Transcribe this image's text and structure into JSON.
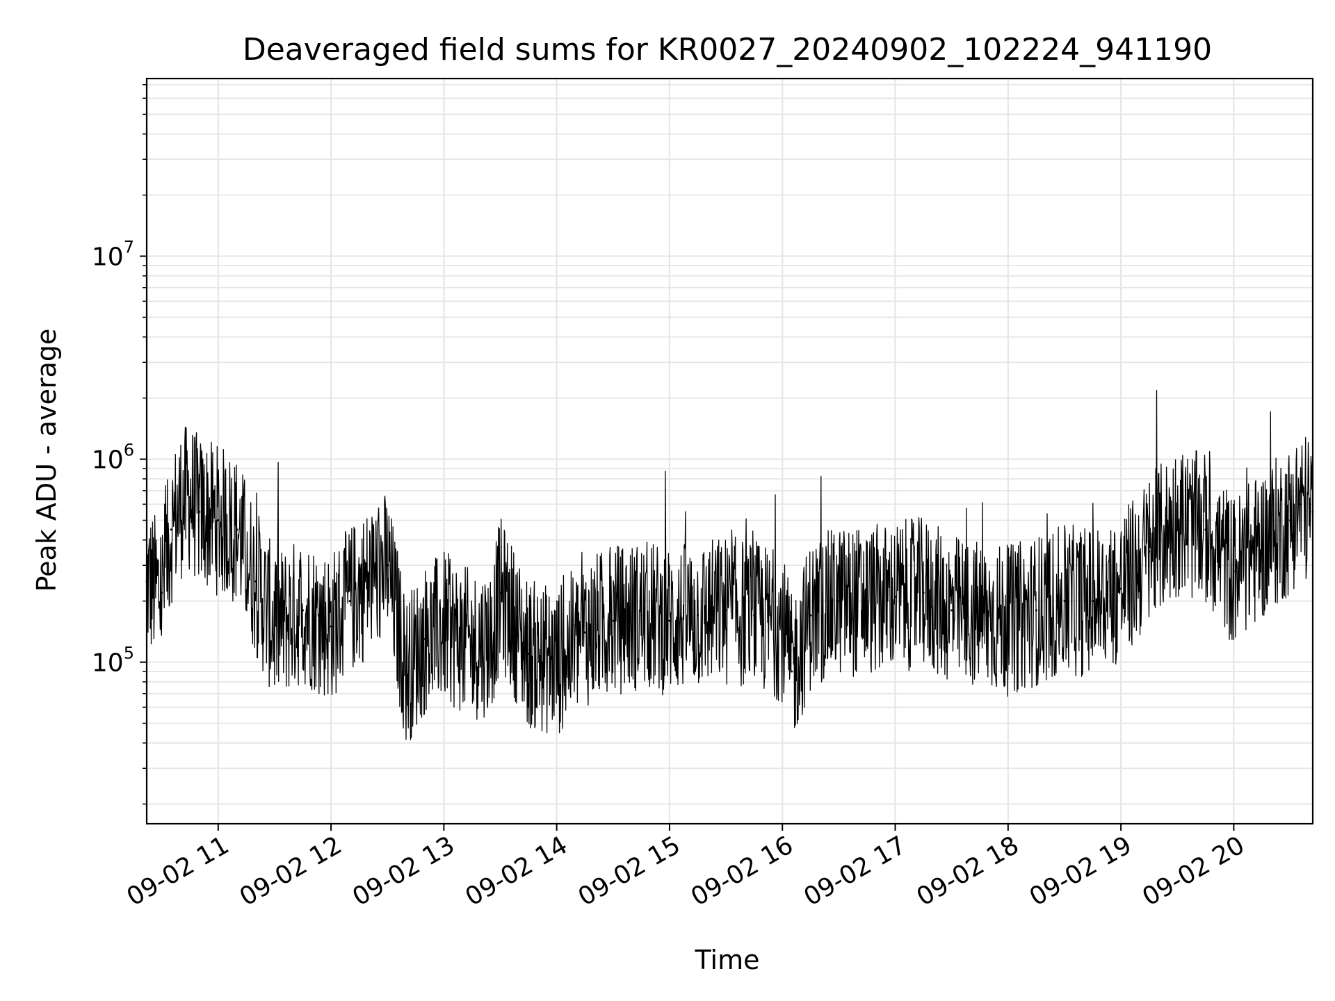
{
  "chart_data": {
    "type": "line",
    "title": "Deaveraged field sums for KR0027_20240902_102224_941190",
    "xlabel": "Time",
    "ylabel": "Peak ADU - average",
    "x_scale": "time",
    "y_scale": "log",
    "xlim": [
      "2024-09-02 10:22",
      "2024-09-02 20:42"
    ],
    "ylim": [
      16000,
      75000000
    ],
    "x_ticks": [
      "09-02 11",
      "09-02 12",
      "09-02 13",
      "09-02 14",
      "09-02 15",
      "09-02 16",
      "09-02 17",
      "09-02 18",
      "09-02 19",
      "09-02 20"
    ],
    "y_ticks": [
      {
        "value": 100000,
        "base": "10",
        "exp": "5"
      },
      {
        "value": 1000000,
        "base": "10",
        "exp": "6"
      },
      {
        "value": 10000000,
        "base": "10",
        "exp": "7"
      }
    ],
    "grid": true,
    "line_color": "#000000",
    "grid_color": "#e6e6e6",
    "series": [
      {
        "x": [
          "2024-09-02 10:22",
          "2024-09-02 10:30",
          "2024-09-02 10:35",
          "2024-09-02 10:40",
          "2024-09-02 10:45",
          "2024-09-02 10:50",
          "2024-09-02 11:00",
          "2024-09-02 11:10",
          "2024-09-02 11:20",
          "2024-09-02 11:30",
          "2024-09-02 11:45",
          "2024-09-02 12:00",
          "2024-09-02 12:10",
          "2024-09-02 12:20",
          "2024-09-02 12:30",
          "2024-09-02 12:40",
          "2024-09-02 12:50",
          "2024-09-02 13:00",
          "2024-09-02 13:15",
          "2024-09-02 13:25",
          "2024-09-02 13:30",
          "2024-09-02 13:45",
          "2024-09-02 14:00",
          "2024-09-02 14:15",
          "2024-09-02 14:30",
          "2024-09-02 14:45",
          "2024-09-02 15:00",
          "2024-09-02 15:15",
          "2024-09-02 15:30",
          "2024-09-02 15:45",
          "2024-09-02 16:00",
          "2024-09-02 16:05",
          "2024-09-02 16:15",
          "2024-09-02 16:30",
          "2024-09-02 16:45",
          "2024-09-02 17:00",
          "2024-09-02 17:15",
          "2024-09-02 17:30",
          "2024-09-02 17:45",
          "2024-09-02 18:00",
          "2024-09-02 18:15",
          "2024-09-02 18:30",
          "2024-09-02 18:45",
          "2024-09-02 19:00",
          "2024-09-02 19:15",
          "2024-09-02 19:30",
          "2024-09-02 19:45",
          "2024-09-02 20:00",
          "2024-09-02 20:15",
          "2024-09-02 20:30",
          "2024-09-02 20:35",
          "2024-09-02 20:42"
        ],
        "y": [
          250000,
          220000,
          450000,
          600000,
          650000,
          550000,
          500000,
          450000,
          250000,
          150000,
          180000,
          150000,
          200000,
          250000,
          300000,
          90000,
          130000,
          150000,
          120000,
          130000,
          220000,
          110000,
          100000,
          140000,
          160000,
          170000,
          160000,
          170000,
          180000,
          170000,
          150000,
          90000,
          170000,
          200000,
          200000,
          210000,
          220000,
          180000,
          170000,
          160000,
          180000,
          200000,
          200000,
          230000,
          350000,
          500000,
          450000,
          280000,
          380000,
          500000,
          600000,
          550000
        ]
      }
    ]
  }
}
